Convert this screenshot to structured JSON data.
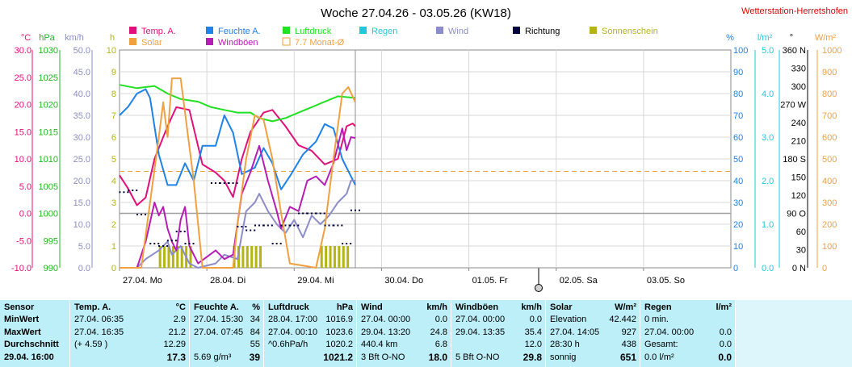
{
  "header": {
    "title": "Woche 27.04.26 - 03.05.26 (KW18)",
    "station": "Wetterstation-Herretshofen"
  },
  "legend": [
    {
      "label": "Temp. A.",
      "color": "#e0107a"
    },
    {
      "label": "Feuchte A.",
      "color": "#1e82e6"
    },
    {
      "label": "Luftdruck",
      "color": "#22e022"
    },
    {
      "label": "Regen",
      "color": "#22c8d8"
    },
    {
      "label": "Wind",
      "color": "#8c8cc8"
    },
    {
      "label": "Richtung",
      "color": "#000040"
    },
    {
      "label": "Sonnenschein",
      "color": "#b4b414"
    },
    {
      "label": "Solar",
      "color": "#f0a040"
    },
    {
      "label": "Windböen",
      "color": "#b41eb4"
    },
    {
      "label": "7.7 Monat-Ø",
      "color": "#f0a040",
      "outline": true
    }
  ],
  "chart_data": {
    "type": "line",
    "x_days": [
      "27.04.  Mo",
      "28.04.  Di",
      "29.04.  Mi",
      "30.04.  Do",
      "01.05.  Fr",
      "02.05.  Sa",
      "03.05.  So"
    ],
    "axes": {
      "celsius": {
        "unit": "°C",
        "ticks": [
          "30.0",
          "25.0",
          "20.0",
          "15.0",
          "10.0",
          "5.0",
          "0.0",
          "-5.0",
          "-10.0"
        ],
        "range": [
          -10,
          30
        ]
      },
      "hpa": {
        "unit": "hPa",
        "ticks": [
          "1030",
          "1025",
          "1020",
          "1015",
          "1010",
          "1005",
          "1000",
          "995",
          "990"
        ],
        "range": [
          990,
          1030
        ]
      },
      "kmh": {
        "unit": "km/h",
        "ticks": [
          "50.0",
          "45.0",
          "40.0",
          "35.0",
          "30.0",
          "25.0",
          "20.0",
          "15.0",
          "10.0",
          "5.0",
          "0.0"
        ],
        "range": [
          0,
          50
        ]
      },
      "hours": {
        "unit": "h",
        "ticks": [
          "10",
          "9",
          "8",
          "7",
          "6",
          "5",
          "4",
          "3",
          "2",
          "1",
          "0"
        ],
        "range": [
          0,
          10
        ]
      },
      "percent": {
        "unit": "%",
        "ticks": [
          "100",
          "90",
          "80",
          "70",
          "60",
          "50",
          "40",
          "30",
          "20",
          "10",
          "0"
        ],
        "range": [
          0,
          100
        ]
      },
      "rain": {
        "unit": "l/m²",
        "ticks": [
          "5.0",
          "4.0",
          "3.0",
          "2.0",
          "1.0",
          "0.0"
        ],
        "range": [
          0,
          5
        ]
      },
      "direction": {
        "unit": "°",
        "ticks": [
          "360 N",
          "330",
          "300",
          "270 W",
          "240",
          "210",
          "180 S",
          "150",
          "120",
          "90 O",
          "60",
          "30",
          "0  N"
        ],
        "range": [
          0,
          360
        ]
      },
      "solar": {
        "unit": "W/m²",
        "ticks": [
          "1000",
          "900",
          "800",
          "700",
          "600",
          "500",
          "400",
          "300",
          "200",
          "100",
          "0"
        ],
        "range": [
          0,
          1000
        ]
      }
    },
    "monthly_avg_temp_c": 7.7,
    "series": [
      {
        "name": "Temp. A.",
        "unit": "°C",
        "color": "#e0107a",
        "points": [
          [
            0,
            7
          ],
          [
            0.1,
            4.5
          ],
          [
            0.2,
            1.5
          ],
          [
            0.3,
            2.9
          ],
          [
            0.4,
            10
          ],
          [
            0.55,
            16
          ],
          [
            0.65,
            19.5
          ],
          [
            0.8,
            19
          ],
          [
            0.95,
            9
          ],
          [
            1.1,
            7.5
          ],
          [
            1.2,
            6
          ],
          [
            1.3,
            3
          ],
          [
            1.4,
            10
          ],
          [
            1.5,
            15
          ],
          [
            1.65,
            18.5
          ],
          [
            1.75,
            19
          ],
          [
            1.9,
            16
          ],
          [
            2.05,
            12.5
          ],
          [
            2.2,
            11.5
          ],
          [
            2.35,
            9
          ],
          [
            2.5,
            10
          ],
          [
            2.6,
            16
          ],
          [
            2.67,
            16.5
          ],
          [
            2.7,
            16
          ]
        ]
      },
      {
        "name": "Feuchte A.",
        "unit": "%",
        "color": "#1e82e6",
        "points": [
          [
            0,
            70
          ],
          [
            0.1,
            74
          ],
          [
            0.2,
            80
          ],
          [
            0.3,
            82
          ],
          [
            0.35,
            78
          ],
          [
            0.45,
            52
          ],
          [
            0.55,
            38
          ],
          [
            0.65,
            38
          ],
          [
            0.75,
            48
          ],
          [
            0.85,
            40
          ],
          [
            0.95,
            56
          ],
          [
            1.1,
            56
          ],
          [
            1.2,
            70
          ],
          [
            1.3,
            62
          ],
          [
            1.4,
            43
          ],
          [
            1.55,
            46
          ],
          [
            1.65,
            55
          ],
          [
            1.75,
            48
          ],
          [
            1.85,
            36
          ],
          [
            1.95,
            42
          ],
          [
            2.1,
            52
          ],
          [
            2.25,
            58
          ],
          [
            2.35,
            66
          ],
          [
            2.45,
            64
          ],
          [
            2.55,
            50
          ],
          [
            2.7,
            38
          ]
        ]
      },
      {
        "name": "Luftdruck",
        "unit": "hPa",
        "color": "#22e022",
        "points": [
          [
            0,
            1023.6
          ],
          [
            0.2,
            1023
          ],
          [
            0.4,
            1023.4
          ],
          [
            0.55,
            1022
          ],
          [
            0.7,
            1021
          ],
          [
            0.9,
            1020.5
          ],
          [
            1.05,
            1019.5
          ],
          [
            1.2,
            1019
          ],
          [
            1.35,
            1018.5
          ],
          [
            1.5,
            1018.5
          ],
          [
            1.6,
            1017.5
          ],
          [
            1.75,
            1016.9
          ],
          [
            1.9,
            1017.5
          ],
          [
            2.05,
            1018.5
          ],
          [
            2.2,
            1019.5
          ],
          [
            2.35,
            1020.5
          ],
          [
            2.5,
            1021.5
          ],
          [
            2.7,
            1021.2
          ]
        ]
      },
      {
        "name": "Wind",
        "unit": "km/h",
        "color": "#8c8cc8",
        "points": [
          [
            0,
            0
          ],
          [
            0.2,
            0
          ],
          [
            0.3,
            2
          ],
          [
            0.45,
            4
          ],
          [
            0.55,
            6
          ],
          [
            0.6,
            3
          ],
          [
            0.7,
            5
          ],
          [
            0.8,
            1
          ],
          [
            0.9,
            0
          ],
          [
            1.1,
            1
          ],
          [
            1.2,
            3
          ],
          [
            1.35,
            2
          ],
          [
            1.45,
            13
          ],
          [
            1.55,
            15
          ],
          [
            1.6,
            17
          ],
          [
            1.7,
            13
          ],
          [
            1.8,
            10
          ],
          [
            1.9,
            8
          ],
          [
            2.0,
            11
          ],
          [
            2.1,
            7
          ],
          [
            2.2,
            12
          ],
          [
            2.3,
            10
          ],
          [
            2.4,
            12
          ],
          [
            2.5,
            15
          ],
          [
            2.6,
            17
          ],
          [
            2.65,
            20
          ],
          [
            2.7,
            20
          ]
        ]
      },
      {
        "name": "Windböen",
        "unit": "km/h",
        "color": "#b41eb4",
        "points": [
          [
            0,
            0
          ],
          [
            0.2,
            0
          ],
          [
            0.3,
            6
          ],
          [
            0.4,
            15
          ],
          [
            0.45,
            12
          ],
          [
            0.5,
            14
          ],
          [
            0.55,
            9
          ],
          [
            0.6,
            6
          ],
          [
            0.65,
            4
          ],
          [
            0.7,
            11
          ],
          [
            0.75,
            14
          ],
          [
            0.8,
            5
          ],
          [
            0.9,
            1
          ],
          [
            1.1,
            4
          ],
          [
            1.2,
            2
          ],
          [
            1.3,
            3
          ],
          [
            1.4,
            17
          ],
          [
            1.5,
            22
          ],
          [
            1.55,
            25
          ],
          [
            1.6,
            28
          ],
          [
            1.7,
            20
          ],
          [
            1.8,
            13
          ],
          [
            1.85,
            9
          ],
          [
            1.95,
            14
          ],
          [
            2.05,
            13
          ],
          [
            2.15,
            20
          ],
          [
            2.25,
            21
          ],
          [
            2.35,
            19
          ],
          [
            2.45,
            24
          ],
          [
            2.55,
            32
          ],
          [
            2.6,
            27
          ],
          [
            2.65,
            30
          ],
          [
            2.7,
            29.8
          ]
        ]
      },
      {
        "name": "Solar",
        "unit": "W/m²",
        "color": "#f0a040",
        "points": [
          [
            0,
            0
          ],
          [
            0.25,
            0
          ],
          [
            0.35,
            300
          ],
          [
            0.45,
            600
          ],
          [
            0.5,
            760
          ],
          [
            0.55,
            600
          ],
          [
            0.6,
            870
          ],
          [
            0.7,
            870
          ],
          [
            0.85,
            400
          ],
          [
            0.95,
            0
          ],
          [
            1.3,
            0
          ],
          [
            1.35,
            200
          ],
          [
            1.45,
            500
          ],
          [
            1.55,
            700
          ],
          [
            1.65,
            680
          ],
          [
            1.75,
            500
          ],
          [
            1.85,
            250
          ],
          [
            1.95,
            20
          ],
          [
            2.25,
            0
          ],
          [
            2.35,
            180
          ],
          [
            2.45,
            500
          ],
          [
            2.55,
            800
          ],
          [
            2.62,
            830
          ],
          [
            2.7,
            760
          ]
        ]
      },
      {
        "name": "Sonnenschein",
        "unit": "h",
        "color": "#b4b414",
        "bars": [
          [
            0.45,
            1
          ],
          [
            0.5,
            1
          ],
          [
            0.55,
            1
          ],
          [
            0.6,
            1
          ],
          [
            0.65,
            1
          ],
          [
            0.7,
            1
          ],
          [
            0.75,
            1
          ],
          [
            0.8,
            1
          ],
          [
            1.3,
            1
          ],
          [
            1.35,
            1
          ],
          [
            1.4,
            1
          ],
          [
            1.45,
            1
          ],
          [
            1.5,
            1
          ],
          [
            1.55,
            1
          ],
          [
            1.6,
            1
          ],
          [
            2.3,
            1
          ],
          [
            2.35,
            1
          ],
          [
            2.4,
            1
          ],
          [
            2.45,
            1
          ],
          [
            2.5,
            1
          ],
          [
            2.55,
            1
          ],
          [
            2.6,
            1
          ]
        ]
      },
      {
        "name": "Richtung",
        "unit": "°",
        "color": "#000040",
        "dots": [
          [
            0.05,
            125
          ],
          [
            0.15,
            128
          ],
          [
            0.25,
            88
          ],
          [
            0.4,
            40
          ],
          [
            0.5,
            36
          ],
          [
            0.6,
            45
          ],
          [
            0.7,
            60
          ],
          [
            0.8,
            40
          ],
          [
            1.1,
            140
          ],
          [
            1.2,
            140
          ],
          [
            1.3,
            140
          ],
          [
            1.4,
            68
          ],
          [
            1.5,
            62
          ],
          [
            1.6,
            70
          ],
          [
            1.7,
            70
          ],
          [
            1.8,
            40
          ],
          [
            1.9,
            70
          ],
          [
            2.0,
            70
          ],
          [
            2.1,
            90
          ],
          [
            2.2,
            90
          ],
          [
            2.3,
            90
          ],
          [
            2.4,
            70
          ],
          [
            2.5,
            70
          ],
          [
            2.6,
            40
          ],
          [
            2.7,
            95
          ]
        ]
      }
    ]
  },
  "stats": {
    "sensor": {
      "header": "Sensor",
      "rows": [
        "MinWert",
        "MaxWert",
        "Durchschnitt",
        "29.04.  16:00"
      ]
    },
    "temp": {
      "header": "Temp. A.",
      "unit": "°C",
      "rows": [
        [
          "27.04.  06:35",
          "2.9"
        ],
        [
          "27.04.  16:35",
          "21.2"
        ],
        [
          "(+ 4.59 )",
          "12.29"
        ],
        [
          "",
          "17.3"
        ]
      ]
    },
    "feuchte": {
      "header": "Feuchte A.",
      "unit": "%",
      "rows": [
        [
          "27.04.  15:30",
          "34"
        ],
        [
          "27.04.  07:45",
          "84"
        ],
        [
          "",
          "55"
        ],
        [
          "5.69 g/m³",
          "39"
        ]
      ]
    },
    "luftdruck": {
      "header": "Luftdruck",
      "unit": "hPa",
      "rows": [
        [
          "28.04.  17:00",
          "1016.9"
        ],
        [
          "27.04.  00:10",
          "1023.6"
        ],
        [
          "^0.6hPa/h",
          "1020.2"
        ],
        [
          "",
          "1021.2"
        ]
      ]
    },
    "wind": {
      "header": "Wind",
      "unit": "km/h",
      "rows": [
        [
          "27.04.  00:00",
          "0.0"
        ],
        [
          "29.04.  13:20",
          "24.8"
        ],
        [
          "440.4 km",
          "6.8"
        ],
        [
          "3 Bft  O-NO",
          "18.0"
        ]
      ]
    },
    "boeen": {
      "header": "Windböen",
      "unit": "km/h",
      "rows": [
        [
          "27.04.  00:00",
          "0.0"
        ],
        [
          "29.04.  13:35",
          "35.4"
        ],
        [
          "",
          "12.0"
        ],
        [
          "5 Bft  O-NO",
          "29.8"
        ]
      ]
    },
    "solar": {
      "header": "Solar",
      "unit": "W/m²",
      "rows": [
        [
          "Elevation",
          "42.442"
        ],
        [
          "27.04.  14:05",
          "927"
        ],
        [
          "28:30 h",
          "438"
        ],
        [
          "sonnig",
          "651"
        ]
      ]
    },
    "regen": {
      "header": "Regen",
      "unit": "l/m²",
      "rows": [
        [
          "0 min.",
          ""
        ],
        [
          "27.04.  00:00",
          "0.0"
        ],
        [
          "Gesamt:",
          "0.0"
        ],
        [
          "0.0 l/m²",
          "0.0"
        ]
      ]
    }
  }
}
